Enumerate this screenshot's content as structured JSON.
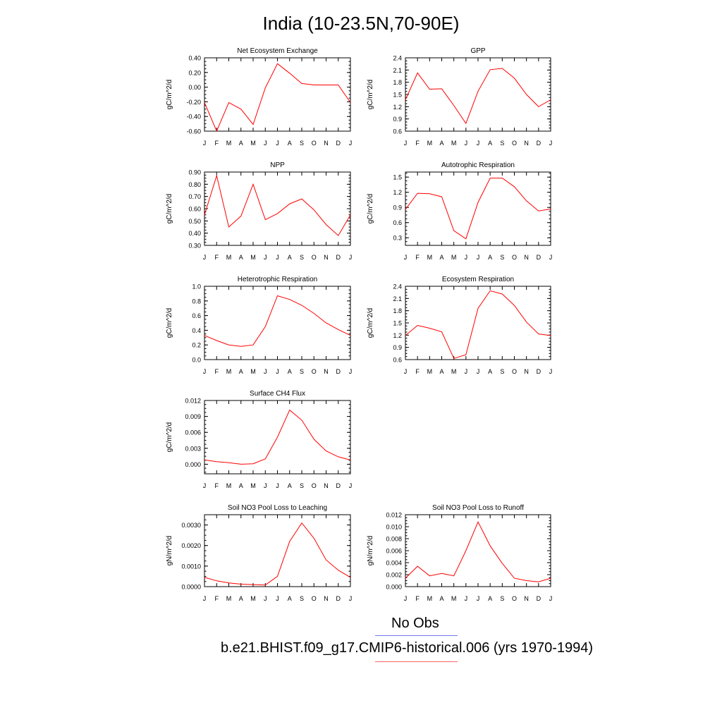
{
  "title": "India (10-23.5N,70-90E)",
  "colors": {
    "model": "#ff0000",
    "obs": "#7777ee",
    "axis": "#000000"
  },
  "legend": {
    "obs_label": "No Obs",
    "model_label": "b.e21.BHIST.f09_g17.CMIP6-historical.006 (yrs 1970-1994)"
  },
  "chart_data": [
    {
      "type": "line",
      "title": "Net Ecosystem Exchange",
      "ylabel": "gC/m^2/d",
      "categories": [
        "J",
        "F",
        "M",
        "A",
        "M",
        "J",
        "J",
        "A",
        "S",
        "O",
        "N",
        "D",
        "J"
      ],
      "ylim": [
        -0.6,
        0.4
      ],
      "yticks": [
        -0.6,
        -0.4,
        -0.2,
        0.0,
        0.2,
        0.4
      ],
      "ytick_labels": [
        "-0.60",
        "-0.40",
        "-0.20",
        "0.00",
        "0.20",
        "0.40"
      ],
      "series": [
        {
          "values": [
            -0.21,
            -0.6,
            -0.21,
            -0.3,
            -0.51,
            -0.01,
            0.32,
            0.19,
            0.05,
            0.03,
            0.03,
            0.03,
            -0.21
          ]
        }
      ]
    },
    {
      "type": "line",
      "title": "GPP",
      "ylabel": "gC/m^2/d",
      "categories": [
        "J",
        "F",
        "M",
        "A",
        "M",
        "J",
        "J",
        "A",
        "S",
        "O",
        "N",
        "D",
        "J"
      ],
      "ylim": [
        0.6,
        2.4
      ],
      "yticks": [
        0.6,
        0.9,
        1.2,
        1.5,
        1.8,
        2.1,
        2.4
      ],
      "ytick_labels": [
        "0.6",
        "0.9",
        "1.2",
        "1.5",
        "1.8",
        "2.1",
        "2.4"
      ],
      "series": [
        {
          "values": [
            1.37,
            2.03,
            1.63,
            1.64,
            1.23,
            0.79,
            1.58,
            2.11,
            2.14,
            1.9,
            1.5,
            1.2,
            1.37
          ]
        }
      ]
    },
    {
      "type": "line",
      "title": "NPP",
      "ylabel": "gC/m^2/d",
      "categories": [
        "J",
        "F",
        "M",
        "A",
        "M",
        "J",
        "J",
        "A",
        "S",
        "O",
        "N",
        "D",
        "J"
      ],
      "ylim": [
        0.3,
        0.9
      ],
      "yticks": [
        0.3,
        0.4,
        0.5,
        0.6,
        0.7,
        0.8,
        0.9
      ],
      "ytick_labels": [
        "0.30",
        "0.40",
        "0.50",
        "0.60",
        "0.70",
        "0.80",
        "0.90"
      ],
      "series": [
        {
          "values": [
            0.55,
            0.87,
            0.45,
            0.54,
            0.8,
            0.51,
            0.56,
            0.64,
            0.68,
            0.59,
            0.47,
            0.38,
            0.55
          ]
        }
      ]
    },
    {
      "type": "line",
      "title": "Autotrophic Respiration",
      "ylabel": "gC/m^2/d",
      "categories": [
        "J",
        "F",
        "M",
        "A",
        "M",
        "J",
        "J",
        "A",
        "S",
        "O",
        "N",
        "D",
        "J"
      ],
      "ylim": [
        0.15,
        1.6
      ],
      "yticks": [
        0.3,
        0.6,
        0.9,
        1.2,
        1.5
      ],
      "ytick_labels": [
        "0.3",
        "0.6",
        "0.9",
        "1.2",
        "1.5"
      ],
      "series": [
        {
          "values": [
            0.86,
            1.18,
            1.17,
            1.11,
            0.44,
            0.28,
            1.0,
            1.48,
            1.48,
            1.31,
            1.03,
            0.83,
            0.87
          ]
        }
      ]
    },
    {
      "type": "line",
      "title": "Heterotrophic Respiration",
      "ylabel": "gC/m^2/d",
      "categories": [
        "J",
        "F",
        "M",
        "A",
        "M",
        "J",
        "J",
        "A",
        "S",
        "O",
        "N",
        "D",
        "J"
      ],
      "ylim": [
        0.0,
        1.0
      ],
      "yticks": [
        0.0,
        0.2,
        0.4,
        0.6,
        0.8,
        1.0
      ],
      "ytick_labels": [
        "0.0",
        "0.2",
        "0.4",
        "0.6",
        "0.8",
        "1.0"
      ],
      "series": [
        {
          "values": [
            0.33,
            0.26,
            0.2,
            0.18,
            0.2,
            0.45,
            0.87,
            0.82,
            0.74,
            0.63,
            0.5,
            0.41,
            0.33
          ]
        }
      ]
    },
    {
      "type": "line",
      "title": "Ecosystem Respiration",
      "ylabel": "gC/m^2/d",
      "categories": [
        "J",
        "F",
        "M",
        "A",
        "M",
        "J",
        "J",
        "A",
        "S",
        "O",
        "N",
        "D",
        "J"
      ],
      "ylim": [
        0.6,
        2.4
      ],
      "yticks": [
        0.6,
        0.9,
        1.2,
        1.5,
        1.8,
        2.1,
        2.4
      ],
      "ytick_labels": [
        "0.6",
        "0.9",
        "1.2",
        "1.5",
        "1.8",
        "2.1",
        "2.4"
      ],
      "series": [
        {
          "values": [
            1.19,
            1.44,
            1.37,
            1.28,
            0.63,
            0.72,
            1.86,
            2.29,
            2.21,
            1.93,
            1.52,
            1.23,
            1.19
          ]
        }
      ]
    },
    {
      "type": "line",
      "title": "Surface CH4 Flux",
      "ylabel": "gC/m^2/d",
      "categories": [
        "J",
        "F",
        "M",
        "A",
        "M",
        "J",
        "J",
        "A",
        "S",
        "O",
        "N",
        "D",
        "J"
      ],
      "ylim": [
        -0.0018,
        0.012
      ],
      "yticks": [
        0.0,
        0.003,
        0.006,
        0.009,
        0.012
      ],
      "ytick_labels": [
        "0.000",
        "0.003",
        "0.006",
        "0.009",
        "0.012"
      ],
      "series": [
        {
          "values": [
            0.0008,
            0.0005,
            0.0003,
            0.0,
            0.0001,
            0.001,
            0.0051,
            0.0102,
            0.0083,
            0.0047,
            0.0025,
            0.0014,
            0.0008
          ]
        }
      ]
    },
    {
      "type": "line",
      "title": "Soil NO3 Pool Loss to Leaching",
      "ylabel": "gN/m^2/d",
      "categories": [
        "J",
        "F",
        "M",
        "A",
        "M",
        "J",
        "J",
        "A",
        "S",
        "O",
        "N",
        "D",
        "J"
      ],
      "ylim": [
        0.0,
        0.0035
      ],
      "yticks": [
        0.0,
        0.001,
        0.002,
        0.003
      ],
      "ytick_labels": [
        "0.0000",
        "0.0010",
        "0.0020",
        "0.0030"
      ],
      "series": [
        {
          "values": [
            0.00045,
            0.00028,
            0.00018,
            0.00012,
            0.0001,
            8e-05,
            0.0005,
            0.0022,
            0.0031,
            0.00235,
            0.0013,
            0.0008,
            0.00045
          ]
        }
      ]
    },
    {
      "type": "line",
      "title": "Soil NO3 Pool Loss to Runoff",
      "ylabel": "gN/m^2/d",
      "categories": [
        "J",
        "F",
        "M",
        "A",
        "M",
        "J",
        "J",
        "A",
        "S",
        "O",
        "N",
        "D",
        "J"
      ],
      "ylim": [
        0.0,
        0.012
      ],
      "yticks": [
        0.0,
        0.002,
        0.004,
        0.006,
        0.008,
        0.01,
        0.012
      ],
      "ytick_labels": [
        "0.000",
        "0.002",
        "0.004",
        "0.006",
        "0.008",
        "0.010",
        "0.012"
      ],
      "series": [
        {
          "values": [
            0.0014,
            0.0034,
            0.0018,
            0.0022,
            0.0018,
            0.006,
            0.0108,
            0.0068,
            0.0039,
            0.0014,
            0.001,
            0.0008,
            0.0014
          ]
        }
      ]
    }
  ]
}
